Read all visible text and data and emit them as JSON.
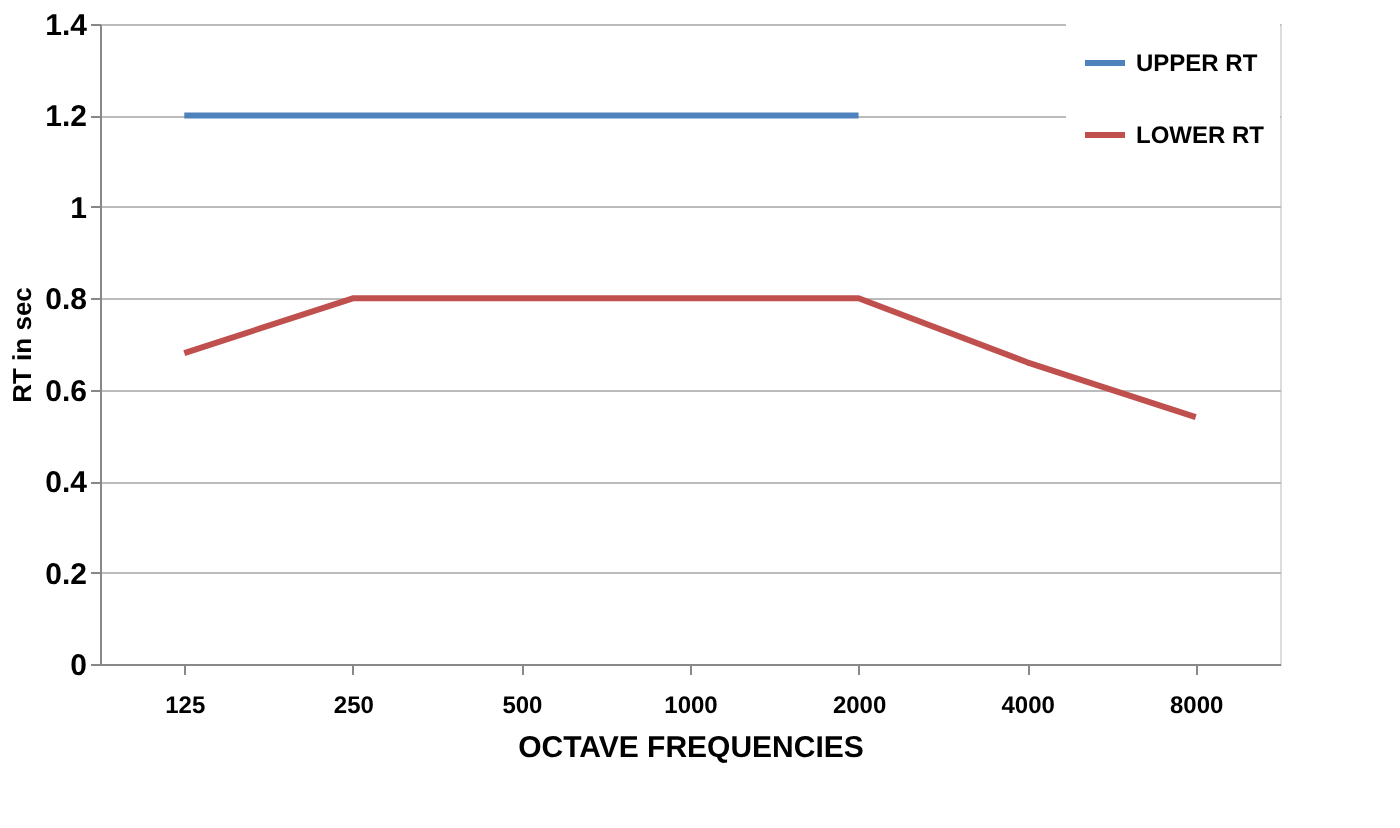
{
  "chart_data": {
    "type": "line",
    "xlabel": "OCTAVE FREQUENCIES",
    "ylabel": "RT in sec",
    "categories": [
      "125",
      "250",
      "500",
      "1000",
      "2000",
      "4000",
      "8000"
    ],
    "series": [
      {
        "name": "UPPER RT",
        "color": "#4f81bd",
        "values": [
          1.2,
          1.2,
          1.2,
          1.2,
          1.2,
          null,
          null
        ]
      },
      {
        "name": "LOWER RT",
        "color": "#c0504d",
        "values": [
          0.68,
          0.8,
          0.8,
          0.8,
          0.8,
          0.66,
          0.54
        ]
      }
    ],
    "ylim": [
      0,
      1.4
    ],
    "yticks": [
      0,
      0.2,
      0.4,
      0.6,
      0.8,
      1,
      1.2,
      1.4
    ],
    "grid": "y",
    "legend": "top right",
    "marker": "none",
    "line_style": "solid"
  }
}
